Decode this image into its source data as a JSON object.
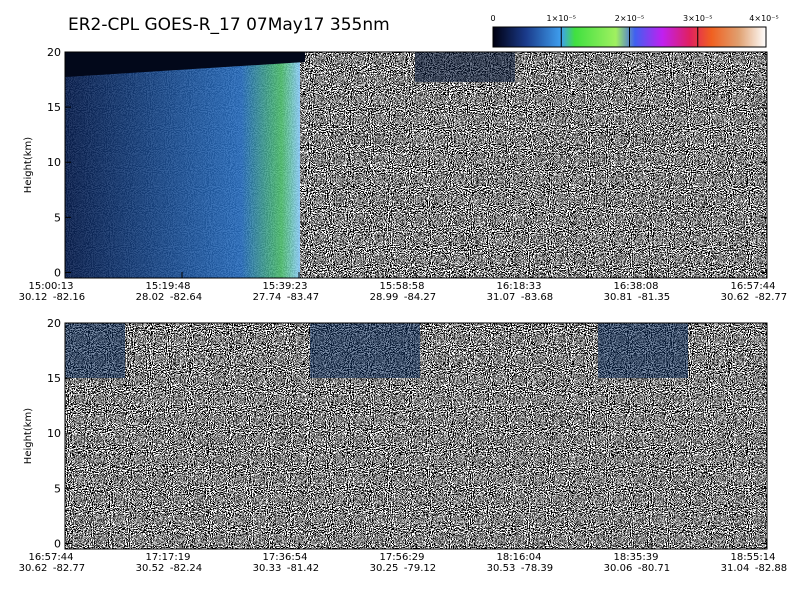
{
  "title": "ER2-CPL GOES-R_17 07May17  355nm",
  "colorbar": {
    "lim": [
      0,
      4e-05
    ],
    "ticks": [
      0,
      {
        "value": 1e-05,
        "label": "1×10⁻⁵"
      },
      {
        "value": 2e-05,
        "label": "2×10⁻⁵"
      },
      {
        "value": 3e-05,
        "label": "3×10⁻⁵"
      },
      {
        "value": 4e-05,
        "label": "4×10⁻⁵"
      }
    ]
  },
  "chart_data": [
    {
      "type": "curtain",
      "ylabel": "Height(km)",
      "ylim": [
        -0.5,
        20
      ],
      "yticks": [
        0,
        5,
        10,
        15,
        20
      ],
      "xticks": [
        {
          "time": "15:00:13",
          "lat": 30.12,
          "lon": -82.16
        },
        {
          "time": "15:19:48",
          "lat": 28.02,
          "lon": -82.64
        },
        {
          "time": "15:39:23",
          "lat": 27.74,
          "lon": -83.47
        },
        {
          "time": "15:58:58",
          "lat": 28.99,
          "lon": -84.27
        },
        {
          "time": "16:18:33",
          "lat": 31.07,
          "lon": -83.68
        },
        {
          "time": "16:38:08",
          "lat": 30.81,
          "lon": -81.35
        },
        {
          "time": "16:57:44",
          "lat": 30.62,
          "lon": -82.77
        }
      ]
    },
    {
      "type": "curtain",
      "ylabel": "Height(km)",
      "ylim": [
        -0.5,
        20
      ],
      "yticks": [
        0,
        5,
        10,
        15,
        20
      ],
      "xticks": [
        {
          "time": "16:57:44",
          "lat": 30.62,
          "lon": -82.77
        },
        {
          "time": "17:17:19",
          "lat": 30.52,
          "lon": -82.24
        },
        {
          "time": "17:36:54",
          "lat": 30.33,
          "lon": -81.42
        },
        {
          "time": "17:56:29",
          "lat": 30.25,
          "lon": -79.12
        },
        {
          "time": "18:16:04",
          "lat": 30.53,
          "lon": -78.39
        },
        {
          "time": "18:35:39",
          "lat": 30.06,
          "lon": -80.71
        },
        {
          "time": "18:55:14",
          "lat": 31.04,
          "lon": -82.88
        }
      ]
    }
  ]
}
